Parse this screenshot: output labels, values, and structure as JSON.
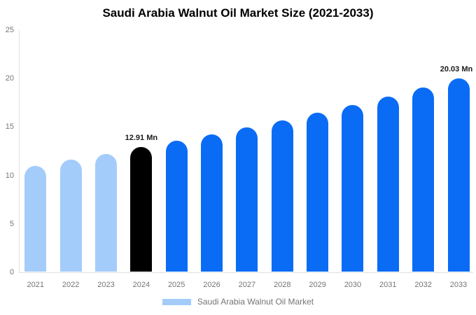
{
  "chart_data": {
    "type": "bar",
    "title": "Saudi Arabia Walnut Oil Market Size (2021-2033)",
    "categories": [
      "2021",
      "2022",
      "2023",
      "2024",
      "2025",
      "2026",
      "2027",
      "2028",
      "2029",
      "2030",
      "2031",
      "2032",
      "2033"
    ],
    "values": [
      10.95,
      11.62,
      12.2,
      12.91,
      13.56,
      14.23,
      14.95,
      15.69,
      16.48,
      17.3,
      18.17,
      19.07,
      20.03
    ],
    "bar_colors": [
      "#A3CCFA",
      "#A3CCFA",
      "#A3CCFA",
      "#000000",
      "#0A6CF5",
      "#0A6CF5",
      "#0A6CF5",
      "#0A6CF5",
      "#0A6CF5",
      "#0A6CF5",
      "#0A6CF5",
      "#0A6CF5",
      "#0A6CF5"
    ],
    "annotations": [
      {
        "category": "2024",
        "text": "12.91 Mn"
      },
      {
        "category": "2033",
        "text": "20.03 Mn"
      }
    ],
    "xlabel": "",
    "ylabel": "",
    "ylim": [
      0,
      25
    ],
    "yticks": [
      0,
      5,
      10,
      15,
      20,
      25
    ],
    "grid": "off",
    "legend_position": "bottom",
    "legend": [
      {
        "label": "Saudi Arabia Walnut Oil Market",
        "color": "#A3CCFA"
      }
    ]
  },
  "colors": {
    "background": "#ffffff",
    "axis_line": "#E0E0E0",
    "tick_label": "#757575",
    "title_text": "#000000",
    "value_label": "#1a1a1a",
    "historical_bar": "#A3CCFA",
    "base_year_bar": "#000000",
    "forecast_bar": "#0A6CF5"
  }
}
